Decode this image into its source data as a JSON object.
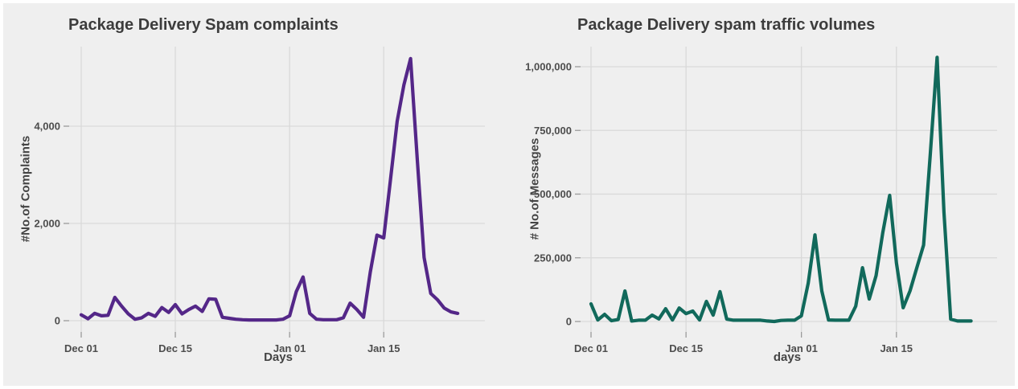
{
  "page": {
    "background": "#efefef",
    "border_color": "#ffffff",
    "grid_color": "#d9d9d9",
    "tick_color": "#9b9b9b",
    "text_color": "#3c3c3c"
  },
  "chart_data": [
    {
      "type": "line",
      "title": "Package Delivery Spam complaints",
      "xlabel": "Days",
      "ylabel": "#No.of Complaints",
      "line_color": "#542788",
      "legend": "none",
      "grid": true,
      "ylim": [
        -230,
        5650
      ],
      "y_ticks": [
        {
          "value": 0,
          "label": "0"
        },
        {
          "value": 2000,
          "label": "2,000"
        },
        {
          "value": 4000,
          "label": "4,000"
        }
      ],
      "x_ticks": [
        {
          "day": 0,
          "label": "Dec 01"
        },
        {
          "day": 14,
          "label": "Dec 15"
        },
        {
          "day": 31,
          "label": "Jan 01"
        },
        {
          "day": 45,
          "label": "Jan 15"
        }
      ],
      "x": [
        "Dec 01",
        "Dec 02",
        "Dec 03",
        "Dec 04",
        "Dec 05",
        "Dec 06",
        "Dec 07",
        "Dec 08",
        "Dec 09",
        "Dec 10",
        "Dec 11",
        "Dec 12",
        "Dec 13",
        "Dec 14",
        "Dec 15",
        "Dec 16",
        "Dec 17",
        "Dec 18",
        "Dec 19",
        "Dec 20",
        "Dec 21",
        "Dec 22",
        "Dec 23",
        "Dec 24",
        "Dec 25",
        "Dec 26",
        "Dec 27",
        "Dec 28",
        "Dec 29",
        "Dec 30",
        "Dec 31",
        "Jan 01",
        "Jan 02",
        "Jan 03",
        "Jan 04",
        "Jan 05",
        "Jan 06",
        "Jan 07",
        "Jan 08",
        "Jan 09",
        "Jan 10",
        "Jan 11",
        "Jan 12",
        "Jan 13",
        "Jan 14",
        "Jan 15",
        "Jan 16",
        "Jan 17",
        "Jan 18",
        "Jan 19",
        "Jan 20",
        "Jan 21",
        "Jan 22",
        "Jan 23",
        "Jan 24",
        "Jan 25",
        "Jan 26"
      ],
      "values": [
        120,
        40,
        150,
        100,
        110,
        480,
        300,
        140,
        30,
        60,
        150,
        90,
        270,
        170,
        330,
        140,
        230,
        300,
        190,
        450,
        440,
        70,
        50,
        30,
        20,
        15,
        15,
        15,
        15,
        15,
        30,
        100,
        600,
        900,
        150,
        30,
        20,
        20,
        20,
        60,
        360,
        230,
        70,
        1000,
        1760,
        1700,
        2900,
        4100,
        4850,
        5390,
        3300,
        1300,
        560,
        430,
        260,
        180,
        150
      ]
    },
    {
      "type": "line",
      "title": "Package Delivery spam traffic volumes",
      "xlabel": "days",
      "ylabel": "# No.of Messages",
      "line_color": "#11695b",
      "legend": "none",
      "grid": true,
      "ylim": [
        -42000,
        1080000
      ],
      "y_ticks": [
        {
          "value": 0,
          "label": "0"
        },
        {
          "value": 250000,
          "label": "250,000"
        },
        {
          "value": 500000,
          "label": "500,000"
        },
        {
          "value": 750000,
          "label": "750,000"
        },
        {
          "value": 1000000,
          "label": "1,000,000"
        }
      ],
      "x_ticks": [
        {
          "day": 0,
          "label": "Dec 01"
        },
        {
          "day": 14,
          "label": "Dec 15"
        },
        {
          "day": 31,
          "label": "Jan 01"
        },
        {
          "day": 45,
          "label": "Jan 15"
        }
      ],
      "x": [
        "Dec 01",
        "Dec 02",
        "Dec 03",
        "Dec 04",
        "Dec 05",
        "Dec 06",
        "Dec 07",
        "Dec 08",
        "Dec 09",
        "Dec 10",
        "Dec 11",
        "Dec 12",
        "Dec 13",
        "Dec 14",
        "Dec 15",
        "Dec 16",
        "Dec 17",
        "Dec 18",
        "Dec 19",
        "Dec 20",
        "Dec 21",
        "Dec 22",
        "Dec 23",
        "Dec 24",
        "Dec 25",
        "Dec 26",
        "Dec 27",
        "Dec 28",
        "Dec 29",
        "Dec 30",
        "Dec 31",
        "Jan 01",
        "Jan 02",
        "Jan 03",
        "Jan 04",
        "Jan 05",
        "Jan 06",
        "Jan 07",
        "Jan 08",
        "Jan 09",
        "Jan 10",
        "Jan 11",
        "Jan 12",
        "Jan 13",
        "Jan 14",
        "Jan 15",
        "Jan 16",
        "Jan 17",
        "Jan 18",
        "Jan 19",
        "Jan 20",
        "Jan 21",
        "Jan 22",
        "Jan 23",
        "Jan 24",
        "Jan 25",
        "Jan 26"
      ],
      "values": [
        69000,
        6000,
        28000,
        3000,
        8000,
        120000,
        2000,
        5000,
        5000,
        25000,
        10000,
        50000,
        6000,
        53000,
        31000,
        41000,
        6000,
        79000,
        25000,
        117000,
        9000,
        5000,
        5000,
        5000,
        5000,
        5000,
        2000,
        0,
        4000,
        5000,
        5000,
        22000,
        150000,
        340000,
        120000,
        6000,
        5000,
        5000,
        5000,
        60000,
        211000,
        88000,
        180000,
        350000,
        495000,
        230000,
        54000,
        120000,
        210000,
        300000,
        660000,
        1037000,
        430000,
        9000,
        2000,
        2000,
        2000
      ]
    }
  ]
}
